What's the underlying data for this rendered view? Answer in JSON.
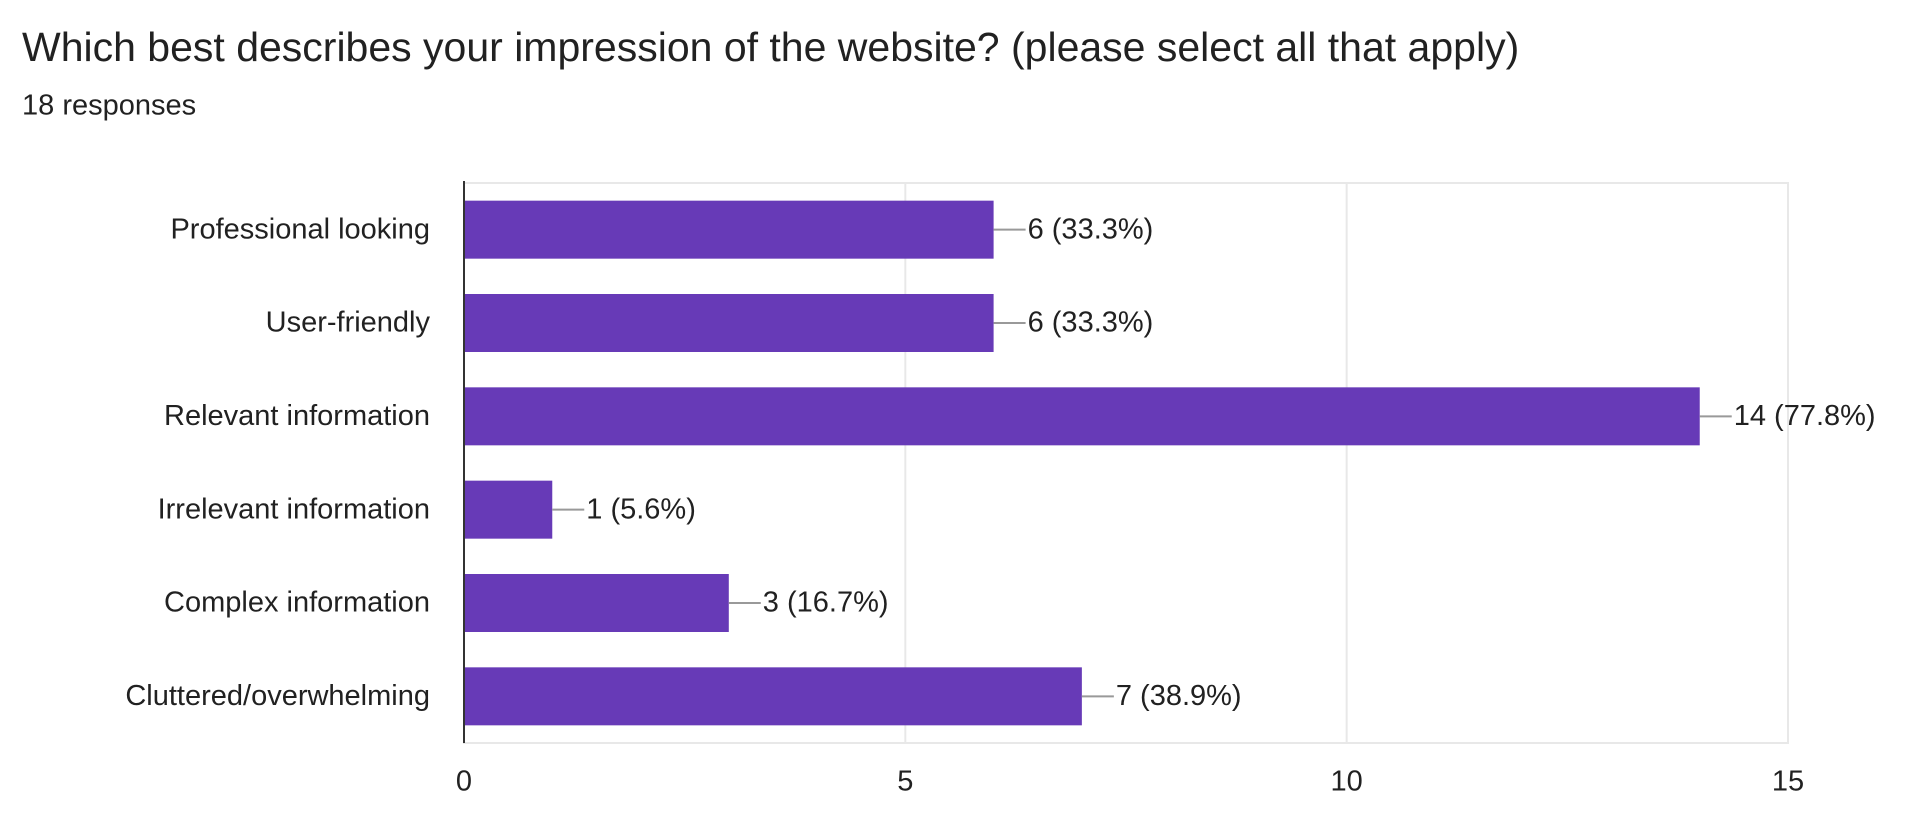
{
  "chart_data": {
    "type": "bar",
    "orientation": "horizontal",
    "title": "Which best describes your impression of the website? (please select all that apply)",
    "subtitle": "18 responses",
    "categories": [
      "Professional looking",
      "User-friendly",
      "Relevant information",
      "Irrelevant information",
      "Complex information",
      "Cluttered/overwhelming"
    ],
    "values": [
      6,
      6,
      14,
      1,
      3,
      7
    ],
    "value_labels": [
      "6 (33.3%)",
      "6 (33.3%)",
      "14 (77.8%)",
      "1 (5.6%)",
      "3 (16.7%)",
      "7 (38.9%)"
    ],
    "color": "#673ab7",
    "xlim": [
      0,
      15
    ],
    "xticks": [
      0,
      5,
      10,
      15
    ],
    "grid": true
  }
}
